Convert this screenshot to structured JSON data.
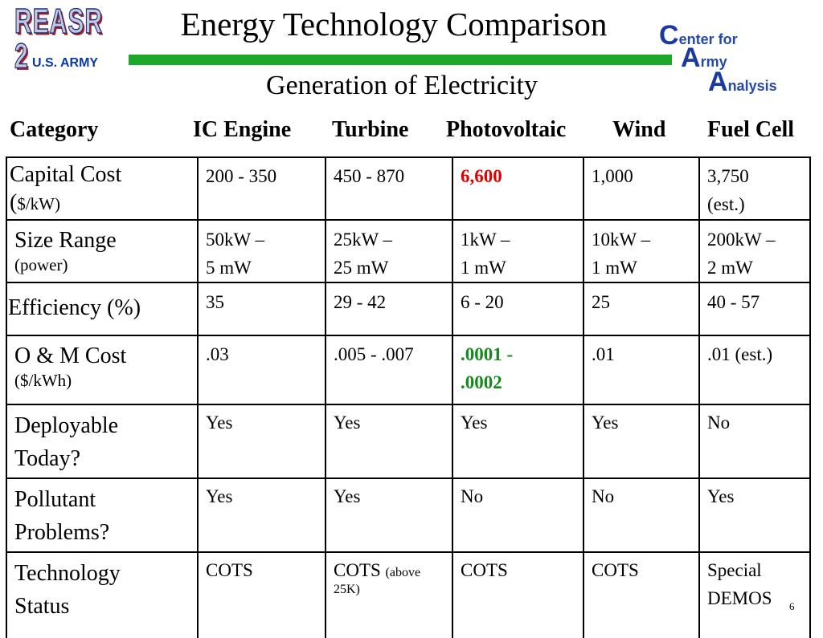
{
  "logo_left": {
    "top_text": "REASR 2",
    "bottom_text": "U.S. ARMY"
  },
  "logo_right": {
    "lines": [
      {
        "initial": "C",
        "rest": "enter for"
      },
      {
        "initial": "A",
        "rest": "rmy"
      },
      {
        "initial": "A",
        "rest": "nalysis"
      }
    ]
  },
  "colors": {
    "bar": "#1ea82a",
    "highlight_red": "#e00000",
    "highlight_green": "#138a1b",
    "logo_blue": "#0a3aa8"
  },
  "title": "Energy Technology Comparison",
  "subtitle": "Generation of Electricity",
  "columns": [
    "Category",
    "IC Engine",
    "Turbine",
    "Photovoltaic",
    "Wind",
    "Fuel Cell"
  ],
  "rows": [
    {
      "category": "Capital Cost",
      "category_sub": "$/kW)",
      "category_prefix": "(",
      "values": [
        "200 - 350",
        "450 - 870",
        "6,600",
        "1,000",
        "3,750"
      ],
      "extra": {
        "fuel_cell_line2": "(est.)"
      }
    },
    {
      "category": "Size Range",
      "category_sub": "(power)",
      "values_line1": [
        "50kW –",
        "25kW –",
        "1kW –",
        "10kW –",
        "200kW –"
      ],
      "values_line2": [
        "5 mW",
        "25 mW",
        "1 mW",
        "1 mW",
        "2 mW"
      ]
    },
    {
      "category": "Efficiency (%)",
      "values": [
        "35",
        "29 - 42",
        "6 - 20",
        "25",
        "40 - 57"
      ]
    },
    {
      "category": "O & M Cost",
      "category_sub": "($/kWh)",
      "values": [
        ".03",
        ".005 - .007",
        ".0001 -",
        ".01",
        ".01 (est.)"
      ],
      "extra": {
        "pv_line2": ".0002"
      }
    },
    {
      "category_line1": "Deployable",
      "category_line2": "Today?",
      "values": [
        "Yes",
        "Yes",
        "Yes",
        "Yes",
        "No"
      ]
    },
    {
      "category_line1": "Pollutant",
      "category_line2": "Problems?",
      "values": [
        "Yes",
        "Yes",
        "No",
        "No",
        "Yes"
      ]
    },
    {
      "category_line1": "Technology",
      "category_line2": "Status",
      "values": [
        "COTS",
        "COTS",
        "COTS",
        "COTS",
        "Special"
      ],
      "extra": {
        "turbine_note": "(above",
        "turbine_note2": "25K)",
        "fuel_cell_line2": "DEMOS"
      }
    }
  ],
  "page_number": "6"
}
